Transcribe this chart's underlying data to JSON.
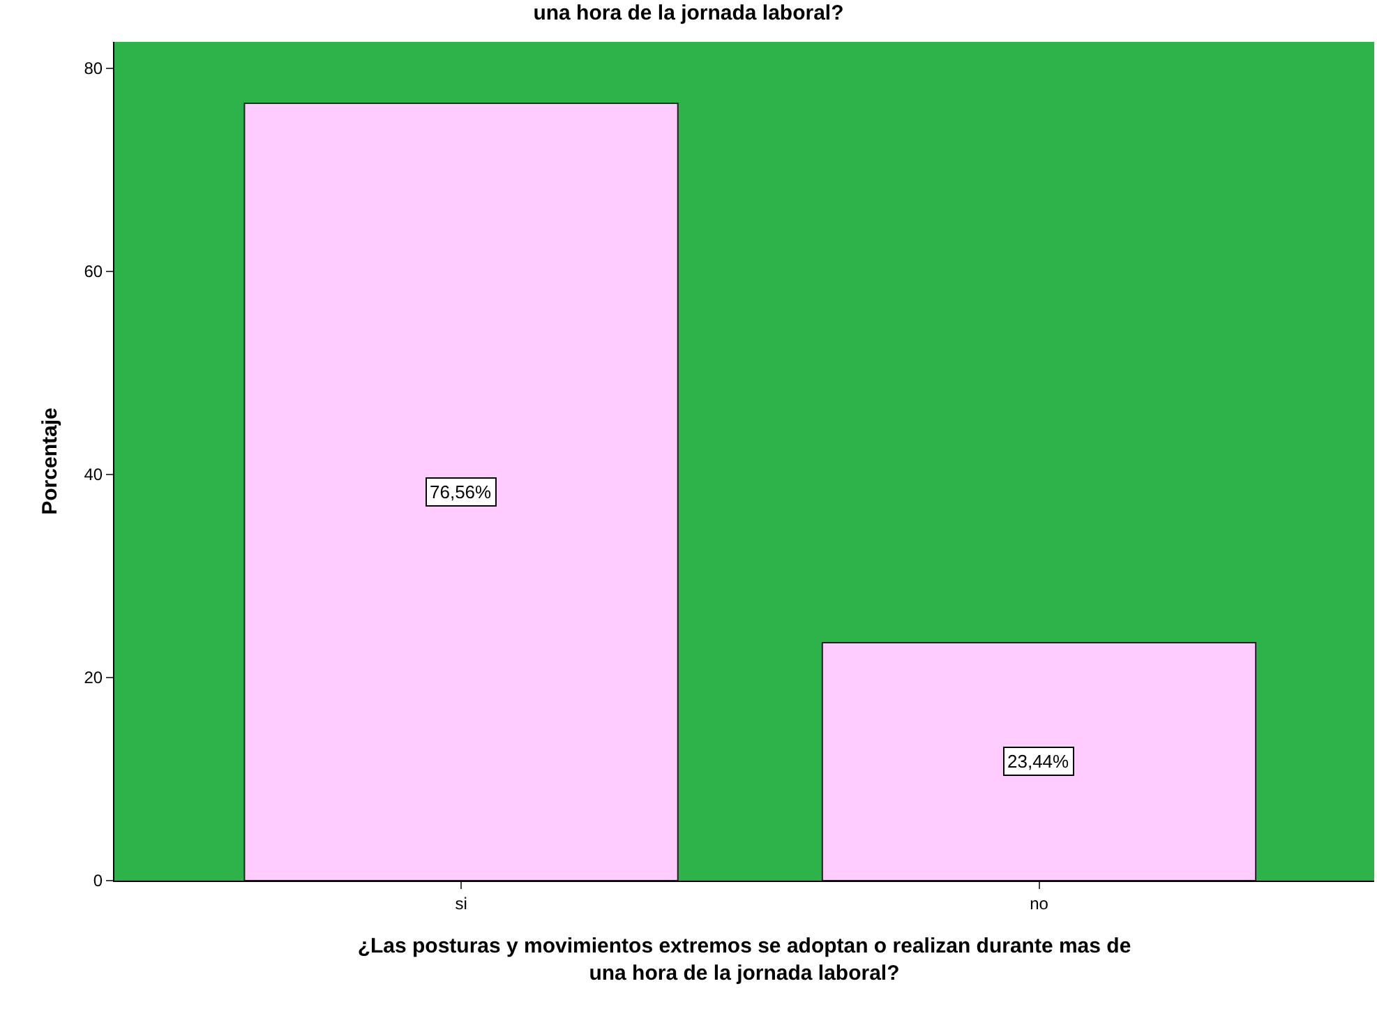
{
  "chart_data": {
    "type": "bar",
    "title": "una hora de la jornada laboral?",
    "xlabel": "¿Las posturas y movimientos extremos se adoptan o realizan durante mas de\nuna hora de la jornada laboral?",
    "ylabel": "Porcentaje",
    "categories": [
      "si",
      "no"
    ],
    "values": [
      76.56,
      23.44
    ],
    "value_labels": [
      "76,56%",
      "23,44%"
    ],
    "color": "#ffccff",
    "ylim": [
      0,
      82.6
    ],
    "yticks": [
      0,
      20,
      40,
      60,
      80
    ],
    "grid": false
  }
}
